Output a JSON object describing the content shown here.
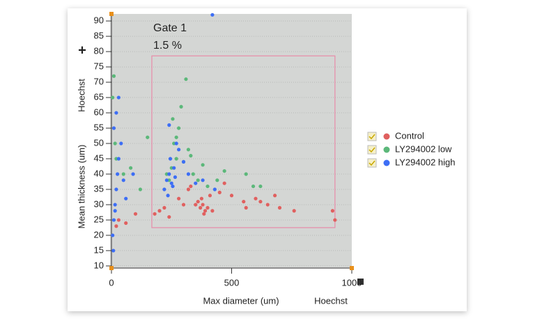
{
  "chart_data": {
    "type": "scatter",
    "xlabel": "Max diameter (um)",
    "xlabel2": "Hoechst",
    "ylabel": "Mean thickness (um)",
    "ylabel2": "Hoechst",
    "xlim": [
      0,
      1000
    ],
    "xticks": [
      0,
      500,
      1000
    ],
    "ylim": [
      9.3,
      92.3
    ],
    "yticks": [
      10,
      15,
      20,
      25,
      30,
      35,
      40,
      45,
      50,
      55,
      60,
      65,
      70,
      75,
      80,
      85,
      90
    ],
    "grid": true,
    "legend": "right",
    "gate": {
      "name": "Gate 1",
      "percent": "1.5 %",
      "x": [
        168,
        930
      ],
      "y": [
        22.5,
        78.6
      ],
      "color": "#e88aa8"
    },
    "series": [
      {
        "name": "Control",
        "color": "#e0605f",
        "x": [
          370,
          380,
          390,
          360,
          400,
          385,
          375,
          350,
          410,
          420,
          300,
          280,
          320,
          450,
          500,
          550,
          600,
          650,
          700,
          760,
          920,
          930,
          200,
          180,
          220,
          240,
          100,
          60,
          30,
          20,
          330,
          470,
          560,
          620,
          680
        ],
        "values": [
          29,
          30,
          28,
          31,
          29,
          27,
          32,
          30,
          33,
          28,
          30,
          32,
          35,
          34,
          33,
          31,
          32,
          30,
          29,
          28,
          28,
          25,
          28,
          27,
          29,
          26,
          27,
          24,
          25,
          23,
          36,
          37,
          29,
          31,
          33
        ]
      },
      {
        "name": "LY294002 low",
        "color": "#5cb87a",
        "x": [
          230,
          250,
          270,
          260,
          240,
          280,
          300,
          320,
          340,
          360,
          380,
          400,
          290,
          310,
          330,
          270,
          255,
          10,
          5,
          15,
          20,
          50,
          80,
          120,
          150,
          440,
          470,
          560,
          590,
          620
        ],
        "values": [
          40,
          42,
          45,
          50,
          38,
          55,
          44,
          48,
          40,
          38,
          43,
          36,
          62,
          71,
          46,
          52,
          58,
          72,
          65,
          50,
          45,
          40,
          42,
          35,
          52,
          38,
          41,
          40,
          36,
          36
        ]
      },
      {
        "name": "LY294002 high",
        "color": "#3d6ef5",
        "x": [
          5,
          10,
          15,
          20,
          25,
          30,
          10,
          20,
          40,
          50,
          15,
          8,
          60,
          30,
          220,
          230,
          240,
          250,
          260,
          235,
          245,
          255,
          265,
          270,
          280,
          300,
          320,
          350,
          380,
          430,
          240,
          420,
          90
        ],
        "values": [
          20,
          25,
          30,
          35,
          40,
          45,
          55,
          60,
          50,
          38,
          28,
          15,
          32,
          65,
          35,
          38,
          40,
          37,
          42,
          33,
          45,
          36,
          39,
          50,
          48,
          44,
          40,
          37,
          38,
          35,
          56,
          92,
          40
        ]
      }
    ]
  }
}
